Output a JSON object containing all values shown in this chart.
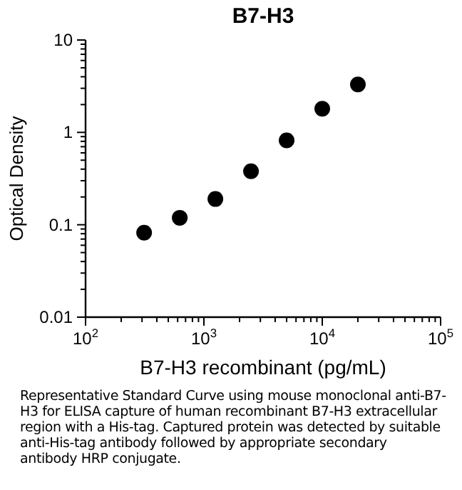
{
  "chart_data": {
    "type": "scatter",
    "title": "B7-H3",
    "xlabel": "B7-H3 recombinant (pg/mL)",
    "ylabel": "Optical Density",
    "x": [
      312.5,
      625,
      1250,
      2500,
      5000,
      10000,
      20000
    ],
    "series": [
      {
        "color": "#000000",
        "values": [
          0.082,
          0.119,
          0.19,
          0.38,
          0.82,
          1.8,
          3.3
        ]
      }
    ],
    "log": "xy",
    "marker": "circle",
    "grid": false,
    "xlim": [
      100,
      100000
    ],
    "ylim": [
      0.01,
      10
    ],
    "xticks": [
      {
        "value": 100,
        "label": "10$^{2}$"
      },
      {
        "value": 200,
        "label": null
      },
      {
        "value": 300,
        "label": null
      },
      {
        "value": 400,
        "label": null
      },
      {
        "value": 500,
        "label": null
      },
      {
        "value": 600,
        "label": null
      },
      {
        "value": 700,
        "label": null
      },
      {
        "value": 800,
        "label": null
      },
      {
        "value": 900,
        "label": null
      },
      {
        "value": 1000,
        "label": "10$^{3}$"
      },
      {
        "value": 2000,
        "label": null
      },
      {
        "value": 3000,
        "label": null
      },
      {
        "value": 4000,
        "label": null
      },
      {
        "value": 5000,
        "label": null
      },
      {
        "value": 6000,
        "label": null
      },
      {
        "value": 7000,
        "label": null
      },
      {
        "value": 8000,
        "label": null
      },
      {
        "value": 9000,
        "label": null
      },
      {
        "value": 10000,
        "label": "10$^{4}$"
      },
      {
        "value": 20000,
        "label": null
      },
      {
        "value": 30000,
        "label": null
      },
      {
        "value": 40000,
        "label": null
      },
      {
        "value": 50000,
        "label": null
      },
      {
        "value": 60000,
        "label": null
      },
      {
        "value": 70000,
        "label": null
      },
      {
        "value": 80000,
        "label": null
      },
      {
        "value": 90000,
        "label": null
      },
      {
        "value": 100000,
        "label": "10$^{5}$"
      }
    ],
    "yticks": [
      0.01,
      {
        "value": 0.02,
        "label": null
      },
      {
        "value": 0.03,
        "label": null
      },
      {
        "value": 0.04,
        "label": null
      },
      {
        "value": 0.05,
        "label": null
      },
      {
        "value": 0.06,
        "label": null
      },
      {
        "value": 0.07,
        "label": null
      },
      {
        "value": 0.08,
        "label": null
      },
      {
        "value": 0.09,
        "label": null
      },
      0.1,
      {
        "value": 0.2,
        "label": null
      },
      {
        "value": 0.3,
        "label": null
      },
      {
        "value": 0.4,
        "label": null
      },
      {
        "value": 0.5,
        "label": null
      },
      {
        "value": 0.6,
        "label": null
      },
      {
        "value": 0.7,
        "label": null
      },
      {
        "value": 0.8,
        "label": null
      },
      {
        "value": 0.9,
        "label": null
      },
      1,
      {
        "value": 2,
        "label": null
      },
      {
        "value": 3,
        "label": null
      },
      {
        "value": 4,
        "label": null
      },
      {
        "value": 5,
        "label": null
      },
      {
        "value": 6,
        "label": null
      },
      {
        "value": 7,
        "label": null
      },
      {
        "value": 8,
        "label": null
      },
      {
        "value": 9,
        "label": null
      },
      10
    ],
    "annotations": [
      "Representative Standard Curve using mouse monoclonal anti-B7-H3 for ELISA capture of human recombinant B7-H3 extracellular region with a His-tag. Captured protein was detected by suitable anti-His-tag antibody followed by appropriate secondary antibody HRP conjugate."
    ]
  }
}
